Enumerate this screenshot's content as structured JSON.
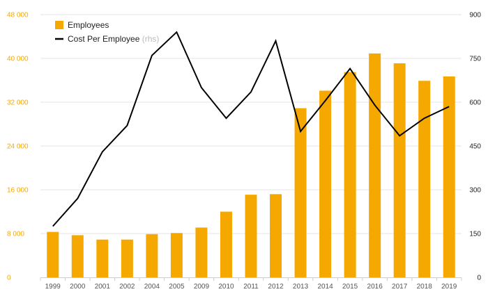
{
  "chart_data": {
    "type": "bar",
    "categories": [
      "1999",
      "2000",
      "2001",
      "2002",
      "2004",
      "2005",
      "2009",
      "2010",
      "2011",
      "2012",
      "2013",
      "2014",
      "2015",
      "2016",
      "2017",
      "2018",
      "2019"
    ],
    "series": [
      {
        "name": "Employees",
        "kind": "bar",
        "axis": "left",
        "color": "#f5a800",
        "values": [
          8300,
          7700,
          6900,
          6900,
          7900,
          8100,
          9100,
          12000,
          15100,
          15200,
          30900,
          34100,
          37500,
          40900,
          39100,
          35900,
          36700
        ]
      },
      {
        "name": "Cost Per Employee",
        "name_suffix": "(rhs)",
        "kind": "line",
        "axis": "right",
        "color": "#000000",
        "values": [
          175,
          270,
          430,
          520,
          760,
          840,
          650,
          545,
          635,
          810,
          500,
          605,
          715,
          590,
          485,
          545,
          585
        ]
      }
    ],
    "y_left": {
      "ylim": [
        0,
        48000
      ],
      "ticks": [
        "0",
        "8 000",
        "16 000",
        "24 000",
        "32 000",
        "40 000",
        "48 000"
      ],
      "tick_values": [
        0,
        8000,
        16000,
        24000,
        32000,
        40000,
        48000
      ],
      "color": "#f5a800"
    },
    "y_right": {
      "ylim": [
        0,
        900
      ],
      "ticks": [
        "0",
        "150",
        "300",
        "450",
        "600",
        "750",
        "900"
      ],
      "tick_values": [
        0,
        150,
        300,
        450,
        600,
        750,
        900
      ],
      "color": "#222222"
    },
    "grid": true,
    "legend_position": "top-left"
  }
}
